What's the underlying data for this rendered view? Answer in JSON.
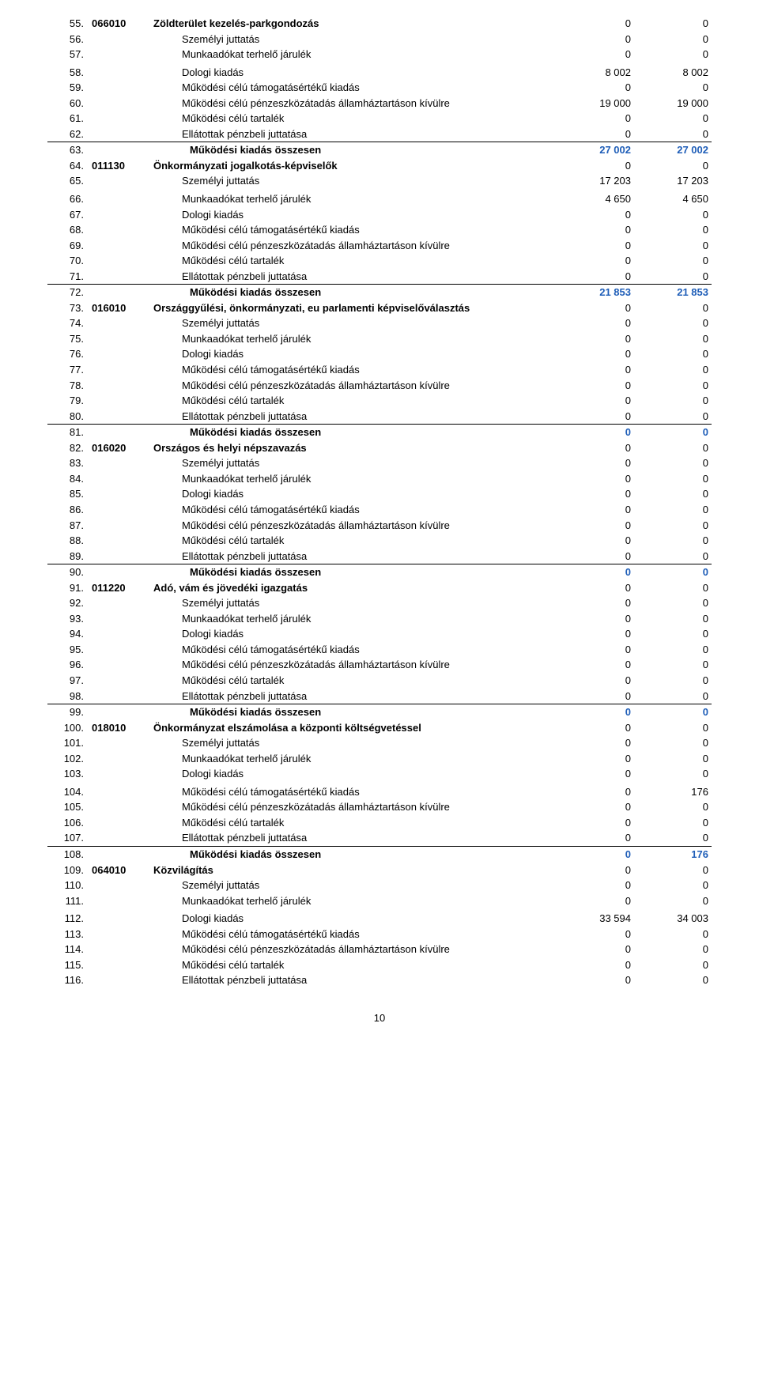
{
  "page_number": "10",
  "colors": {
    "blue": "#1f5eb8"
  },
  "rows": [
    {
      "n": "55.",
      "code": "066010",
      "label": "Zöldterület kezelés-parkgondozás",
      "v1": "0",
      "v2": "0",
      "bold": true,
      "indent": 0
    },
    {
      "n": "56.",
      "code": "",
      "label": "Személyi juttatás",
      "v1": "0",
      "v2": "0",
      "bold": false,
      "indent": 1
    },
    {
      "n": "57.",
      "code": "",
      "label": "Munkaadókat terhelő járulék",
      "v1": "0",
      "v2": "0",
      "bold": false,
      "indent": 1
    },
    {
      "n": "58.",
      "code": "",
      "label": "Dologi kiadás",
      "v1": "8 002",
      "v2": "8 002",
      "bold": false,
      "indent": 1,
      "padtop": true
    },
    {
      "n": "59.",
      "code": "",
      "label": "Működési célú támogatásértékű kiadás",
      "v1": "0",
      "v2": "0",
      "bold": false,
      "indent": 1
    },
    {
      "n": "60.",
      "code": "",
      "label": "Működési célú pénzeszközátadás államháztartáson kívülre",
      "v1": "19 000",
      "v2": "19 000",
      "bold": false,
      "indent": 1
    },
    {
      "n": "61.",
      "code": "",
      "label": "Működési célú tartalék",
      "v1": "0",
      "v2": "0",
      "bold": false,
      "indent": 1
    },
    {
      "n": "62.",
      "code": "",
      "label": "Ellátottak pénzbeli juttatása",
      "v1": "0",
      "v2": "0",
      "bold": false,
      "indent": 1
    },
    {
      "n": "63.",
      "code": "",
      "label": "Működési kiadás összesen",
      "v1": "27 002",
      "v2": "27 002",
      "bold": true,
      "blue": true,
      "indent": 2,
      "sep": true
    },
    {
      "n": "64.",
      "code": "011130",
      "label": "Önkormányzati jogalkotás-képviselők",
      "v1": "0",
      "v2": "0",
      "bold": true,
      "indent": 0
    },
    {
      "n": "65.",
      "code": "",
      "label": "Személyi juttatás",
      "v1": "17 203",
      "v2": "17 203",
      "bold": false,
      "indent": 1
    },
    {
      "n": "66.",
      "code": "",
      "label": "Munkaadókat terhelő járulék",
      "v1": "4 650",
      "v2": "4 650",
      "bold": false,
      "indent": 1,
      "padtop": true
    },
    {
      "n": "67.",
      "code": "",
      "label": "Dologi kiadás",
      "v1": "0",
      "v2": "0",
      "bold": false,
      "indent": 1
    },
    {
      "n": "68.",
      "code": "",
      "label": "Működési célú támogatásértékű kiadás",
      "v1": "0",
      "v2": "0",
      "bold": false,
      "indent": 1
    },
    {
      "n": "69.",
      "code": "",
      "label": "Működési célú pénzeszközátadás államháztartáson kívülre",
      "v1": "0",
      "v2": "0",
      "bold": false,
      "indent": 1
    },
    {
      "n": "70.",
      "code": "",
      "label": "Működési célú tartalék",
      "v1": "0",
      "v2": "0",
      "bold": false,
      "indent": 1
    },
    {
      "n": "71.",
      "code": "",
      "label": "Ellátottak pénzbeli juttatása",
      "v1": "0",
      "v2": "0",
      "bold": false,
      "indent": 1
    },
    {
      "n": "72.",
      "code": "",
      "label": "Működési kiadás összesen",
      "v1": "21 853",
      "v2": "21 853",
      "bold": true,
      "blue": true,
      "indent": 2,
      "sep": true
    },
    {
      "n": "73.",
      "code": "016010",
      "label": "Országgyűlési, önkormányzati, eu parlamenti képviselőválasztás",
      "v1": "0",
      "v2": "0",
      "bold": true,
      "indent": 0
    },
    {
      "n": "74.",
      "code": "",
      "label": "Személyi juttatás",
      "v1": "0",
      "v2": "0",
      "bold": false,
      "indent": 1
    },
    {
      "n": "75.",
      "code": "",
      "label": "Munkaadókat terhelő járulék",
      "v1": "0",
      "v2": "0",
      "bold": false,
      "indent": 1
    },
    {
      "n": "76.",
      "code": "",
      "label": "Dologi kiadás",
      "v1": "0",
      "v2": "0",
      "bold": false,
      "indent": 1
    },
    {
      "n": "77.",
      "code": "",
      "label": "Működési célú támogatásértékű kiadás",
      "v1": "0",
      "v2": "0",
      "bold": false,
      "indent": 1
    },
    {
      "n": "78.",
      "code": "",
      "label": "Működési célú pénzeszközátadás államháztartáson kívülre",
      "v1": "0",
      "v2": "0",
      "bold": false,
      "indent": 1
    },
    {
      "n": "79.",
      "code": "",
      "label": "Működési célú tartalék",
      "v1": "0",
      "v2": "0",
      "bold": false,
      "indent": 1
    },
    {
      "n": "80.",
      "code": "",
      "label": "Ellátottak pénzbeli juttatása",
      "v1": "0",
      "v2": "0",
      "bold": false,
      "indent": 1
    },
    {
      "n": "81.",
      "code": "",
      "label": "Működési kiadás összesen",
      "v1": "0",
      "v2": "0",
      "bold": true,
      "blue": true,
      "indent": 2,
      "sep": true
    },
    {
      "n": "82.",
      "code": "016020",
      "label": "Országos és helyi népszavazás",
      "v1": "0",
      "v2": "0",
      "bold": true,
      "indent": 0
    },
    {
      "n": "83.",
      "code": "",
      "label": "Személyi juttatás",
      "v1": "0",
      "v2": "0",
      "bold": false,
      "indent": 1
    },
    {
      "n": "84.",
      "code": "",
      "label": "Munkaadókat terhelő járulék",
      "v1": "0",
      "v2": "0",
      "bold": false,
      "indent": 1
    },
    {
      "n": "85.",
      "code": "",
      "label": "Dologi kiadás",
      "v1": "0",
      "v2": "0",
      "bold": false,
      "indent": 1
    },
    {
      "n": "86.",
      "code": "",
      "label": "Működési célú támogatásértékű kiadás",
      "v1": "0",
      "v2": "0",
      "bold": false,
      "indent": 1
    },
    {
      "n": "87.",
      "code": "",
      "label": "Működési célú pénzeszközátadás államháztartáson kívülre",
      "v1": "0",
      "v2": "0",
      "bold": false,
      "indent": 1
    },
    {
      "n": "88.",
      "code": "",
      "label": "Működési célú tartalék",
      "v1": "0",
      "v2": "0",
      "bold": false,
      "indent": 1
    },
    {
      "n": "89.",
      "code": "",
      "label": "Ellátottak pénzbeli juttatása",
      "v1": "0",
      "v2": "0",
      "bold": false,
      "indent": 1
    },
    {
      "n": "90.",
      "code": "",
      "label": "Működési kiadás összesen",
      "v1": "0",
      "v2": "0",
      "bold": true,
      "blue": true,
      "indent": 2,
      "sep": true
    },
    {
      "n": "91.",
      "code": "011220",
      "label": "Adó, vám és jövedéki igazgatás",
      "v1": "0",
      "v2": "0",
      "bold": true,
      "indent": 0
    },
    {
      "n": "92.",
      "code": "",
      "label": "Személyi juttatás",
      "v1": "0",
      "v2": "0",
      "bold": false,
      "indent": 1
    },
    {
      "n": "93.",
      "code": "",
      "label": "Munkaadókat terhelő járulék",
      "v1": "0",
      "v2": "0",
      "bold": false,
      "indent": 1
    },
    {
      "n": "94.",
      "code": "",
      "label": "Dologi kiadás",
      "v1": "0",
      "v2": "0",
      "bold": false,
      "indent": 1
    },
    {
      "n": "95.",
      "code": "",
      "label": "Működési célú támogatásértékű kiadás",
      "v1": "0",
      "v2": "0",
      "bold": false,
      "indent": 1
    },
    {
      "n": "96.",
      "code": "",
      "label": "Működési célú pénzeszközátadás államháztartáson kívülre",
      "v1": "0",
      "v2": "0",
      "bold": false,
      "indent": 1
    },
    {
      "n": "97.",
      "code": "",
      "label": "Működési célú tartalék",
      "v1": "0",
      "v2": "0",
      "bold": false,
      "indent": 1
    },
    {
      "n": "98.",
      "code": "",
      "label": "Ellátottak pénzbeli juttatása",
      "v1": "0",
      "v2": "0",
      "bold": false,
      "indent": 1
    },
    {
      "n": "99.",
      "code": "",
      "label": "Működési kiadás összesen",
      "v1": "0",
      "v2": "0",
      "bold": true,
      "blue": true,
      "indent": 2,
      "sep": true
    },
    {
      "n": "100.",
      "code": "018010",
      "label": "Önkormányzat elszámolása a központi költségvetéssel",
      "v1": "0",
      "v2": "0",
      "bold": true,
      "indent": 0
    },
    {
      "n": "101.",
      "code": "",
      "label": "Személyi juttatás",
      "v1": "0",
      "v2": "0",
      "bold": false,
      "indent": 1
    },
    {
      "n": "102.",
      "code": "",
      "label": "Munkaadókat terhelő járulék",
      "v1": "0",
      "v2": "0",
      "bold": false,
      "indent": 1
    },
    {
      "n": "103.",
      "code": "",
      "label": "Dologi kiadás",
      "v1": "0",
      "v2": "0",
      "bold": false,
      "indent": 1
    },
    {
      "n": "104.",
      "code": "",
      "label": "Működési célú támogatásértékű kiadás",
      "v1": "0",
      "v2": "176",
      "bold": false,
      "indent": 1,
      "padtop": true
    },
    {
      "n": "105.",
      "code": "",
      "label": "Működési célú pénzeszközátadás államháztartáson kívülre",
      "v1": "0",
      "v2": "0",
      "bold": false,
      "indent": 1
    },
    {
      "n": "106.",
      "code": "",
      "label": "Működési célú tartalék",
      "v1": "0",
      "v2": "0",
      "bold": false,
      "indent": 1
    },
    {
      "n": "107.",
      "code": "",
      "label": "Ellátottak pénzbeli juttatása",
      "v1": "0",
      "v2": "0",
      "bold": false,
      "indent": 1
    },
    {
      "n": "108.",
      "code": "",
      "label": "Működési kiadás összesen",
      "v1": "0",
      "v2": "176",
      "bold": true,
      "blue": true,
      "indent": 2,
      "sep": true
    },
    {
      "n": "109.",
      "code": "064010",
      "label": "Közvilágítás",
      "v1": "0",
      "v2": "0",
      "bold": true,
      "indent": 0
    },
    {
      "n": "110.",
      "code": "",
      "label": "Személyi juttatás",
      "v1": "0",
      "v2": "0",
      "bold": false,
      "indent": 1
    },
    {
      "n": "111.",
      "code": "",
      "label": "Munkaadókat terhelő járulék",
      "v1": "0",
      "v2": "0",
      "bold": false,
      "indent": 1
    },
    {
      "n": "112.",
      "code": "",
      "label": "Dologi kiadás",
      "v1": "33 594",
      "v2": "34 003",
      "bold": false,
      "indent": 1,
      "padtop": true
    },
    {
      "n": "113.",
      "code": "",
      "label": "Működési célú támogatásértékű kiadás",
      "v1": "0",
      "v2": "0",
      "bold": false,
      "indent": 1
    },
    {
      "n": "114.",
      "code": "",
      "label": "Működési célú pénzeszközátadás államháztartáson kívülre",
      "v1": "0",
      "v2": "0",
      "bold": false,
      "indent": 1
    },
    {
      "n": "115.",
      "code": "",
      "label": "Működési célú tartalék",
      "v1": "0",
      "v2": "0",
      "bold": false,
      "indent": 1
    },
    {
      "n": "116.",
      "code": "",
      "label": "Ellátottak pénzbeli juttatása",
      "v1": "0",
      "v2": "0",
      "bold": false,
      "indent": 1
    }
  ]
}
